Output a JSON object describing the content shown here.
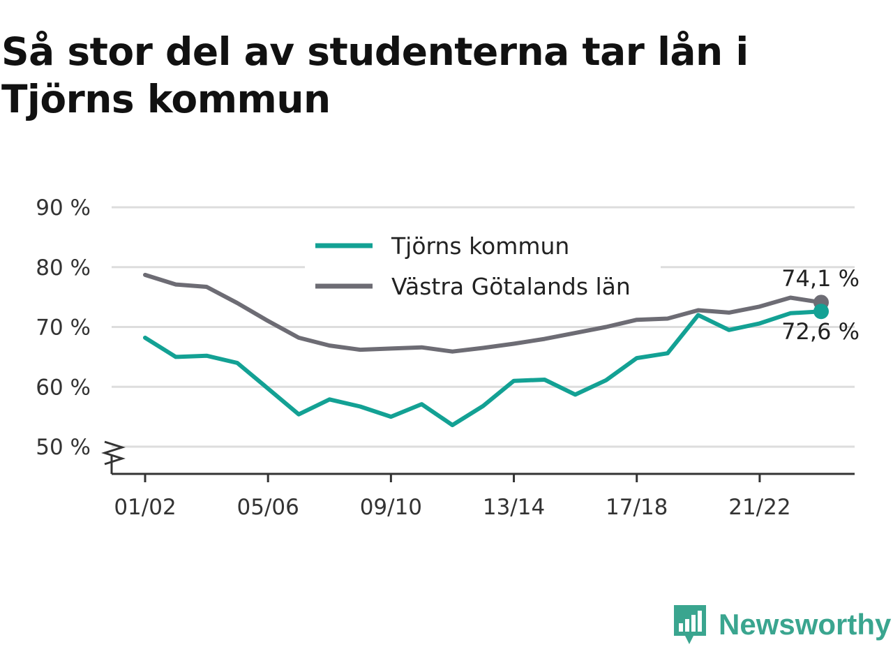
{
  "title": "Så stor del av studenterna tar lån i Tjörns kommun",
  "brand": {
    "name": "Newsworthy",
    "color": "#3aa58f",
    "icon": "newsworthy-logo-icon"
  },
  "colors": {
    "series1": "#13a194",
    "series2": "#6d6c74",
    "grid": "#dddddd",
    "axis": "#333333"
  },
  "chart_data": {
    "type": "line",
    "x": [
      "01/02",
      "02/03",
      "03/04",
      "04/05",
      "05/06",
      "06/07",
      "07/08",
      "08/09",
      "09/10",
      "10/11",
      "11/12",
      "12/13",
      "13/14",
      "14/15",
      "15/16",
      "16/17",
      "17/18",
      "18/19",
      "19/20",
      "20/21",
      "21/22",
      "22/23",
      "23/24"
    ],
    "x_tick_labels": [
      "01/02",
      "05/06",
      "09/10",
      "13/14",
      "17/18",
      "21/22"
    ],
    "y_ticks": [
      50,
      60,
      70,
      80,
      90
    ],
    "y_tick_labels": [
      "50 %",
      "60 %",
      "70 %",
      "80 %",
      "90 %"
    ],
    "ylim": [
      50,
      90
    ],
    "axis_break": true,
    "grid": true,
    "legend_position": "top-center",
    "series": [
      {
        "name": "Tjörns kommun",
        "color": "#13a194",
        "values": [
          68.2,
          65.0,
          65.2,
          64.0,
          59.7,
          55.4,
          57.9,
          56.7,
          55.0,
          57.1,
          53.6,
          56.8,
          61.0,
          61.2,
          58.7,
          61.1,
          64.8,
          65.6,
          72.0,
          69.5,
          70.6,
          72.3,
          72.6
        ],
        "end_label": "72,6 %"
      },
      {
        "name": "Västra Götalands län",
        "color": "#6d6c74",
        "values": [
          78.7,
          77.1,
          76.7,
          74.0,
          71.0,
          68.2,
          66.9,
          66.2,
          66.4,
          66.6,
          65.9,
          66.5,
          67.2,
          68.0,
          69.0,
          70.0,
          71.2,
          71.4,
          72.8,
          72.4,
          73.4,
          74.9,
          74.1
        ],
        "end_label": "74,1 %"
      }
    ]
  }
}
